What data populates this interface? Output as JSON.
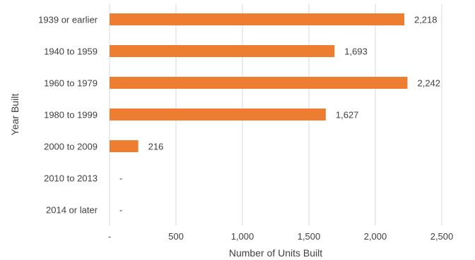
{
  "chart_data": {
    "type": "bar",
    "orientation": "horizontal",
    "categories": [
      "1939 or earlier",
      "1940 to 1959",
      "1960 to 1979",
      "1980 to 1999",
      "2000 to 2009",
      "2010 to 2013",
      "2014 or later"
    ],
    "values": [
      2218,
      1693,
      2242,
      1627,
      216,
      0,
      0
    ],
    "data_labels": [
      "2,218",
      "1,693",
      "2,242",
      "1,627",
      "216",
      "-",
      "-"
    ],
    "xlabel": "Number of Units Built",
    "ylabel": "Year Built",
    "xlim": [
      0,
      2500
    ],
    "x_ticks": [
      0,
      500,
      1000,
      1500,
      2000,
      2500
    ],
    "x_tick_labels": [
      "-",
      "500",
      "1,000",
      "1,500",
      "2,000",
      "2,500"
    ],
    "grid": "vertical",
    "legend": "none",
    "bar_color": "#ED7D31",
    "grid_color": "#D9D9D9",
    "text_color": "#404040"
  }
}
